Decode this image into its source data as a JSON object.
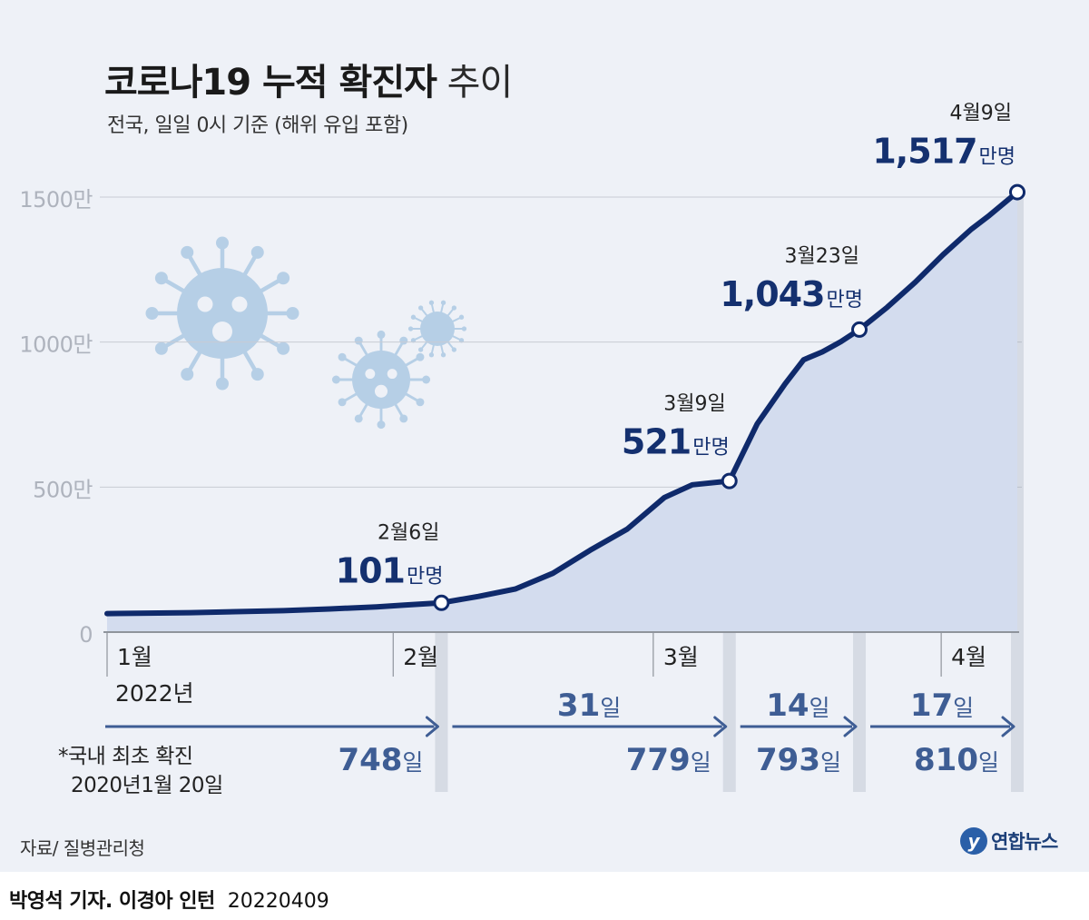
{
  "title": {
    "bold": "코로나19 누적 확진자",
    "light": "추이"
  },
  "subtitle": "전국, 일일 0시 기준 (해위 유입 포함)",
  "source": "자료/ 질병관리청",
  "logo": {
    "mark": "y",
    "text": "연합뉴스"
  },
  "byline": {
    "name": "박영석 기자. 이경아 인턴",
    "date": "20220409"
  },
  "colors": {
    "line": "#0f2a6b",
    "area": "#d3dcee",
    "grid": "#c8ccd4",
    "arrow": "#3e5d94",
    "label_blue": "#14306f",
    "axis_gray": "#aeb3bd",
    "panel": "#eef1f7",
    "virus": "#b6cfe6"
  },
  "chart_data": {
    "type": "area",
    "ylim": [
      0,
      1500
    ],
    "yticks": [
      0,
      500,
      1000,
      1500
    ],
    "ytick_labels": [
      "0",
      "500만",
      "1000만",
      "1500만"
    ],
    "xdomain": [
      "2022-01-01",
      "2022-04-09"
    ],
    "months": [
      {
        "date": "2022-01-01",
        "label": "1월"
      },
      {
        "date": "2022-02-01",
        "label": "2월"
      },
      {
        "date": "2022-03-01",
        "label": "3월"
      },
      {
        "date": "2022-04-01",
        "label": "4월"
      }
    ],
    "year_label": "2022년",
    "series": [
      {
        "x": [
          "2022-01-01",
          "2022-01-10",
          "2022-01-20",
          "2022-01-25",
          "2022-01-30",
          "2022-02-02",
          "2022-02-06",
          "2022-02-10",
          "2022-02-14",
          "2022-02-18",
          "2022-02-22",
          "2022-02-26",
          "2022-03-02",
          "2022-03-05",
          "2022-03-09",
          "2022-03-12",
          "2022-03-15",
          "2022-03-17",
          "2022-03-19",
          "2022-03-21",
          "2022-03-23",
          "2022-03-26",
          "2022-03-29",
          "2022-04-01",
          "2022-04-04",
          "2022-04-06",
          "2022-04-09"
        ],
        "y": [
          64,
          67,
          74,
          80,
          87,
          93,
          101,
          123,
          149,
          203,
          282,
          355,
          464,
          508,
          521,
          718,
          856,
          939,
          966,
          1001,
          1043,
          1120,
          1206,
          1301,
          1388,
          1437,
          1517
        ]
      }
    ],
    "highlights": [
      {
        "date": "2022-02-06",
        "value": 101,
        "date_label": "2월6일",
        "value_label": "101",
        "unit": "만명"
      },
      {
        "date": "2022-03-09",
        "value": 521,
        "date_label": "3월9일",
        "value_label": "521",
        "unit": "만명"
      },
      {
        "date": "2022-03-23",
        "value": 1043,
        "date_label": "3월23일",
        "value_label": "1,043",
        "unit": "만명"
      },
      {
        "date": "2022-04-09",
        "value": 1517,
        "date_label": "4월9일",
        "value_label": "1,517",
        "unit": "만명"
      }
    ],
    "intervals": [
      {
        "from": "2022-01-01",
        "to": "2022-02-06",
        "days": "",
        "unit": "",
        "cumulative": "748",
        "cum_unit": "일"
      },
      {
        "from": "2022-02-06",
        "to": "2022-03-09",
        "days": "31",
        "unit": "일",
        "cumulative": "779",
        "cum_unit": "일"
      },
      {
        "from": "2022-03-09",
        "to": "2022-03-23",
        "days": "14",
        "unit": "일",
        "cumulative": "793",
        "cum_unit": "일"
      },
      {
        "from": "2022-03-23",
        "to": "2022-04-09",
        "days": "17",
        "unit": "일",
        "cumulative": "810",
        "cum_unit": "일"
      }
    ],
    "footnote": [
      "*국내 최초 확진",
      "2020년1월 20일"
    ]
  }
}
